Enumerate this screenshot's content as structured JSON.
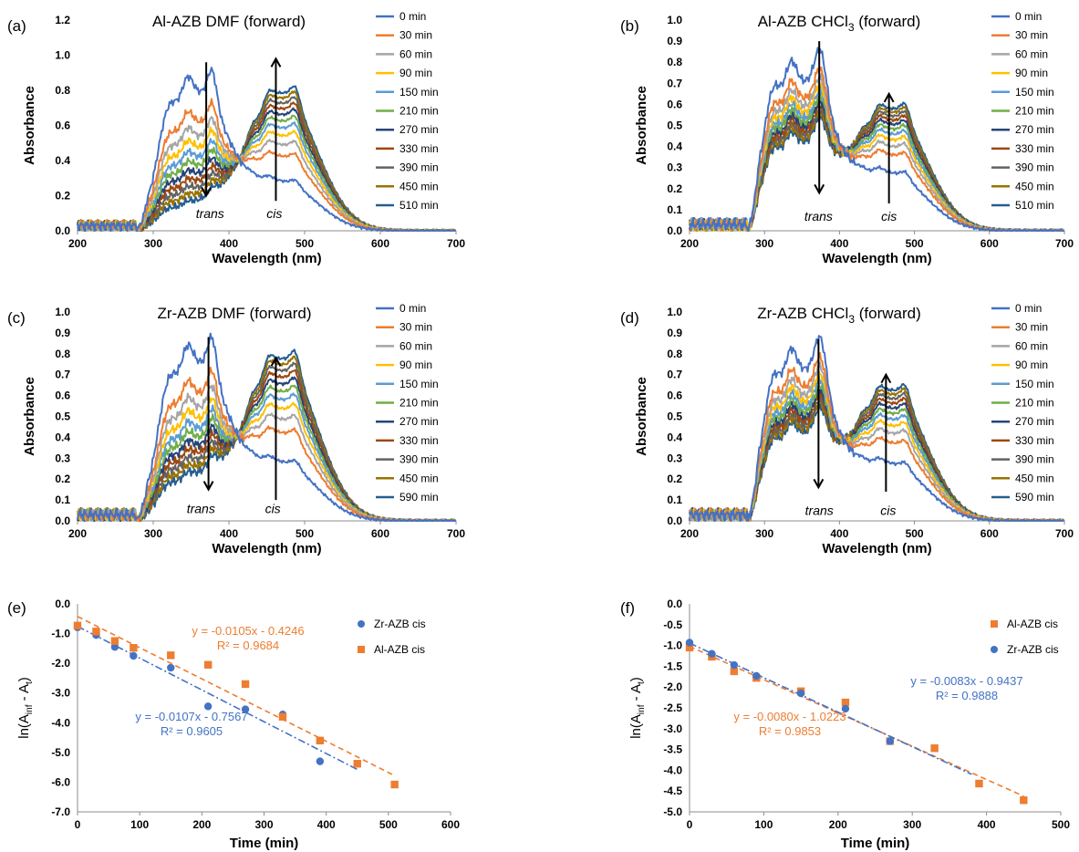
{
  "legend_times": {
    "a": [
      "0 min",
      "30 min",
      "60 min",
      "90 min",
      "150 min",
      "210 min",
      "270 min",
      "330 min",
      "390 min",
      "450 min",
      "510 min"
    ],
    "b": [
      "0 min",
      "30 min",
      "60 min",
      "90 min",
      "150 min",
      "210 min",
      "270 min",
      "330 min",
      "390 min",
      "450 min",
      "510 min"
    ],
    "c": [
      "0 min",
      "30 min",
      "60 min",
      "90 min",
      "150 min",
      "210 min",
      "270 min",
      "330 min",
      "390 min",
      "450 min",
      "590 min"
    ],
    "d": [
      "0 min",
      "30 min",
      "60 min",
      "90 min",
      "150 min",
      "210 min",
      "270 min",
      "330 min",
      "390 min",
      "450 min",
      "590 min"
    ]
  },
  "colors": [
    "#4472C4",
    "#ED7D31",
    "#A5A5A5",
    "#FFC000",
    "#5B9BD5",
    "#70AD47",
    "#264478",
    "#9E480E",
    "#636363",
    "#997300",
    "#255E91"
  ],
  "chart_data": [
    {
      "id": "a",
      "panel_label": "(a)",
      "type": "line",
      "title": "Al-AZB DMF (forward)",
      "xlabel": "Wavelength (nm)",
      "ylabel": "Absorbance",
      "xlim": [
        200,
        700
      ],
      "ylim": [
        0,
        1.2
      ],
      "xticks": [
        "200",
        "300",
        "400",
        "500",
        "600",
        "700"
      ],
      "yticks": [
        "0.0",
        "0.2",
        "0.4",
        "0.6",
        "0.8",
        "1.0",
        "1.2"
      ],
      "annotations": [
        {
          "text": "trans",
          "x": 375,
          "y": 0.1
        },
        {
          "text": "cis",
          "x": 460,
          "y": 0.1
        }
      ],
      "arrows": [
        {
          "x": 370,
          "y_from": 0.96,
          "y_to": 0.2
        },
        {
          "x": 462,
          "y_from": 0.17,
          "y_to": 0.98
        }
      ],
      "trans_first": 0.96,
      "trans_last": 0.17,
      "cis_first": 0.3,
      "cis_last": 0.86,
      "legend_ref": "a"
    },
    {
      "id": "b",
      "panel_label": "(b)",
      "type": "line",
      "title": "Al-AZB CHCl3 (forward)",
      "title_main": "Al-AZB CHCl",
      "title_sub": "3",
      "title_tail": " (forward)",
      "xlabel": "Wavelength (nm)",
      "ylabel": "Absorbance",
      "xlim": [
        200,
        700
      ],
      "ylim": [
        0,
        1.0
      ],
      "xticks": [
        "200",
        "300",
        "400",
        "500",
        "600",
        "700"
      ],
      "yticks": [
        "0.0",
        "0.1",
        "0.2",
        "0.3",
        "0.4",
        "0.5",
        "0.6",
        "0.7",
        "0.8",
        "0.9",
        "1.0"
      ],
      "annotations": [
        {
          "text": "trans",
          "x": 372,
          "y": 0.07
        },
        {
          "text": "cis",
          "x": 466,
          "y": 0.07
        }
      ],
      "arrows": [
        {
          "x": 373,
          "y_from": 0.9,
          "y_to": 0.18
        },
        {
          "x": 466,
          "y_from": 0.13,
          "y_to": 0.65
        }
      ],
      "trans_first": 0.87,
      "trans_last": 0.5,
      "cis_first": 0.29,
      "cis_last": 0.63,
      "legend_ref": "b"
    },
    {
      "id": "c",
      "panel_label": "(c)",
      "type": "line",
      "title": "Zr-AZB DMF (forward)",
      "xlabel": "Wavelength (nm)",
      "ylabel": "Absorbance",
      "xlim": [
        200,
        700
      ],
      "ylim": [
        0,
        1.0
      ],
      "xticks": [
        "200",
        "300",
        "400",
        "500",
        "600",
        "700"
      ],
      "yticks": [
        "0.0",
        "0.1",
        "0.2",
        "0.3",
        "0.4",
        "0.5",
        "0.6",
        "0.7",
        "0.8",
        "0.9",
        "1.0"
      ],
      "annotations": [
        {
          "text": "trans",
          "x": 363,
          "y": 0.06
        },
        {
          "text": "cis",
          "x": 458,
          "y": 0.06
        }
      ],
      "arrows": [
        {
          "x": 373,
          "y_from": 0.88,
          "y_to": 0.15
        },
        {
          "x": 462,
          "y_from": 0.1,
          "y_to": 0.78
        }
      ],
      "trans_first": 0.92,
      "trans_last": 0.24,
      "cis_first": 0.3,
      "cis_last": 0.85,
      "legend_ref": "c"
    },
    {
      "id": "d",
      "panel_label": "(d)",
      "type": "line",
      "title": "Zr-AZB CHCl3 (forward)",
      "title_main": "Zr-AZB CHCl",
      "title_sub": "3",
      "title_tail": " (forward)",
      "xlabel": "Wavelength (nm)",
      "ylabel": "Absorbance",
      "xlim": [
        200,
        700
      ],
      "ylim": [
        0,
        1.0
      ],
      "xticks": [
        "200",
        "300",
        "400",
        "500",
        "600",
        "700"
      ],
      "yticks": [
        "0.0",
        "0.1",
        "0.2",
        "0.3",
        "0.4",
        "0.5",
        "0.6",
        "0.7",
        "0.8",
        "0.9",
        "1.0"
      ],
      "annotations": [
        {
          "text": "trans",
          "x": 373,
          "y": 0.05
        },
        {
          "text": "cis",
          "x": 465,
          "y": 0.05
        }
      ],
      "arrows": [
        {
          "x": 372,
          "y_from": 0.87,
          "y_to": 0.16
        },
        {
          "x": 462,
          "y_from": 0.14,
          "y_to": 0.7
        }
      ],
      "trans_first": 0.89,
      "trans_last": 0.5,
      "cis_first": 0.29,
      "cis_last": 0.68,
      "legend_ref": "d"
    },
    {
      "id": "e",
      "panel_label": "(e)",
      "type": "scatter",
      "title": "",
      "xlabel": "Time (min)",
      "ylabel": "ln(Ainf - At)",
      "ylabel_parts": [
        "ln(A",
        "inf",
        " - A",
        "t",
        ")"
      ],
      "xlim": [
        0,
        600
      ],
      "ylim": [
        -7.0,
        0.0
      ],
      "xticks": [
        "0",
        "100",
        "200",
        "300",
        "400",
        "500",
        "600"
      ],
      "yticks": [
        "-7.0",
        "-6.0",
        "-5.0",
        "-4.0",
        "-3.0",
        "-2.0",
        "-1.0",
        "0.0"
      ],
      "series": [
        {
          "name": "Zr-AZB cis",
          "marker": "circle",
          "color": "#4472C4",
          "x": [
            0,
            30,
            60,
            90,
            150,
            210,
            270,
            330,
            390
          ],
          "y": [
            -0.79,
            -1.05,
            -1.45,
            -1.75,
            -2.15,
            -3.45,
            -3.55,
            -3.72,
            -5.3
          ],
          "fit": {
            "slope": -0.0107,
            "intercept": -0.7567,
            "x_range": [
              0,
              450
            ],
            "dash": "8 3 2 3"
          },
          "equation": "y = -0.0107x - 0.7567",
          "r2": "R² = 0.9605"
        },
        {
          "name": "Al-AZB cis",
          "marker": "square",
          "color": "#ED7D31",
          "x": [
            0,
            30,
            60,
            90,
            150,
            210,
            270,
            330,
            390,
            450,
            510
          ],
          "y": [
            -0.73,
            -0.93,
            -1.25,
            -1.48,
            -1.73,
            -2.05,
            -2.7,
            -3.8,
            -4.6,
            -5.38,
            -6.08
          ],
          "fit": {
            "slope": -0.0105,
            "intercept": -0.4246,
            "x_range": [
              0,
              510
            ],
            "dash": "6 4"
          },
          "equation": "y = -0.0105x - 0.4246",
          "r2": "R² = 0.9684"
        }
      ]
    },
    {
      "id": "f",
      "panel_label": "(f)",
      "type": "scatter",
      "title": "",
      "xlabel": "Time (min)",
      "ylabel": "ln(Ainf - At)",
      "ylabel_parts": [
        "ln(A",
        "inf",
        " - A",
        "t",
        ")"
      ],
      "xlim": [
        0,
        500
      ],
      "ylim": [
        -5.0,
        0.0
      ],
      "xticks": [
        "0",
        "100",
        "200",
        "300",
        "400",
        "500"
      ],
      "yticks": [
        "-5.0",
        "-4.5",
        "-4.0",
        "-3.5",
        "-3.0",
        "-2.5",
        "-2.0",
        "-1.5",
        "-1.0",
        "-0.5",
        "0.0"
      ],
      "series": [
        {
          "name": "Al-AZB cis",
          "marker": "square",
          "color": "#ED7D31",
          "x": [
            0,
            30,
            60,
            90,
            150,
            210,
            270,
            330,
            390,
            450
          ],
          "y": [
            -1.05,
            -1.27,
            -1.62,
            -1.78,
            -2.1,
            -2.37,
            -3.3,
            -3.47,
            -4.32,
            -4.72
          ],
          "fit": {
            "slope": -0.008,
            "intercept": -1.0223,
            "x_range": [
              0,
              450
            ],
            "dash": "6 4"
          },
          "equation": "y = -0.0080x - 1.0223",
          "r2": "R² = 0.9853"
        },
        {
          "name": "Zr-AZB cis",
          "marker": "circle",
          "color": "#4472C4",
          "x": [
            0,
            30,
            60,
            90,
            150,
            210,
            270
          ],
          "y": [
            -0.93,
            -1.2,
            -1.47,
            -1.73,
            -2.15,
            -2.52,
            -3.3
          ],
          "fit": {
            "slope": -0.0083,
            "intercept": -0.9437,
            "x_range": [
              0,
              380
            ],
            "dash": "8 3 2 3"
          },
          "equation": "y = -0.0083x - 0.9437",
          "r2": "R² = 0.9888"
        }
      ]
    }
  ]
}
